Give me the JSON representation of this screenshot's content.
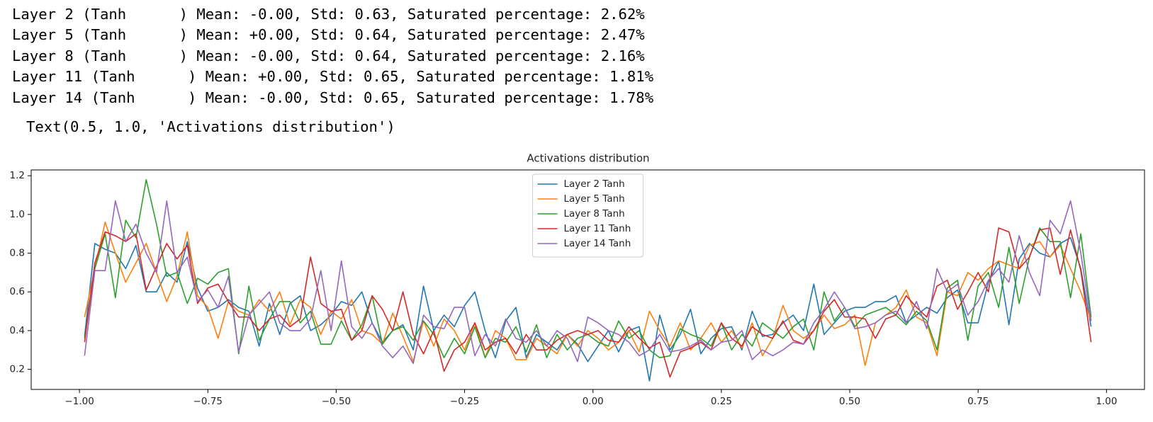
{
  "output": {
    "lines": [
      "Layer 2 (Tanh      ) Mean: -0.00, Std: 0.63, Saturated percentage: 2.62%",
      "Layer 5 (Tanh      ) Mean: +0.00, Std: 0.64, Saturated percentage: 2.47%",
      "Layer 8 (Tanh      ) Mean: -0.00, Std: 0.64, Saturated percentage: 2.16%",
      "Layer 11 (Tanh      ) Mean: +0.00, Std: 0.65, Saturated percentage: 1.81%",
      "Layer 14 (Tanh      ) Mean: -0.00, Std: 0.65, Saturated percentage: 1.78%"
    ],
    "repr": "Text(0.5, 1.0, 'Activations distribution')"
  },
  "chart_data": {
    "type": "line",
    "title": "Activations distribution",
    "legend": "upper center",
    "grid": false,
    "x": [
      -0.99,
      -0.97,
      -0.95,
      -0.93,
      -0.91,
      -0.89,
      -0.87,
      -0.85,
      -0.83,
      -0.81,
      -0.79,
      -0.77,
      -0.75,
      -0.73,
      -0.71,
      -0.69,
      -0.67,
      -0.65,
      -0.63,
      -0.61,
      -0.59,
      -0.57,
      -0.55,
      -0.53,
      -0.51,
      -0.49,
      -0.47,
      -0.45,
      -0.43,
      -0.41,
      -0.39,
      -0.37,
      -0.35,
      -0.33,
      -0.31,
      -0.29,
      -0.27,
      -0.25,
      -0.23,
      -0.21,
      -0.19,
      -0.17,
      -0.15,
      -0.13,
      -0.11,
      -0.09,
      -0.07,
      -0.05,
      -0.03,
      -0.01,
      0.01,
      0.03,
      0.05,
      0.07,
      0.09,
      0.11,
      0.13,
      0.15,
      0.17,
      0.19,
      0.21,
      0.23,
      0.25,
      0.27,
      0.29,
      0.31,
      0.33,
      0.35,
      0.37,
      0.39,
      0.41,
      0.43,
      0.45,
      0.47,
      0.49,
      0.51,
      0.53,
      0.55,
      0.57,
      0.59,
      0.61,
      0.63,
      0.65,
      0.67,
      0.69,
      0.71,
      0.73,
      0.75,
      0.77,
      0.79,
      0.81,
      0.83,
      0.85,
      0.87,
      0.89,
      0.91,
      0.93,
      0.95,
      0.97
    ],
    "series": [
      {
        "name": "Layer 2 Tanh",
        "color": "#1f77b4",
        "values": [
          0.37,
          0.85,
          0.82,
          0.8,
          0.72,
          0.84,
          0.6,
          0.6,
          0.7,
          0.65,
          0.86,
          0.62,
          0.5,
          0.52,
          0.56,
          0.52,
          0.5,
          0.32,
          0.54,
          0.38,
          0.54,
          0.58,
          0.4,
          0.43,
          0.48,
          0.55,
          0.53,
          0.6,
          0.44,
          0.34,
          0.4,
          0.43,
          0.3,
          0.63,
          0.4,
          0.48,
          0.42,
          0.53,
          0.6,
          0.4,
          0.26,
          0.45,
          0.52,
          0.26,
          0.38,
          0.34,
          0.3,
          0.38,
          0.33,
          0.24,
          0.32,
          0.4,
          0.29,
          0.4,
          0.42,
          0.14,
          0.48,
          0.3,
          0.38,
          0.51,
          0.28,
          0.36,
          0.41,
          0.42,
          0.3,
          0.5,
          0.37,
          0.38,
          0.44,
          0.48,
          0.4,
          0.64,
          0.38,
          0.44,
          0.5,
          0.52,
          0.52,
          0.55,
          0.55,
          0.58,
          0.44,
          0.48,
          0.52,
          0.49,
          0.57,
          0.61,
          0.44,
          0.44,
          0.65,
          0.76,
          0.43,
          0.77,
          0.85,
          0.8,
          0.78,
          0.85,
          0.88,
          0.72,
          0.42
        ]
      },
      {
        "name": "Layer 5 Tanh",
        "color": "#ff7f0e",
        "values": [
          0.47,
          0.72,
          0.96,
          0.8,
          0.65,
          0.75,
          0.85,
          0.7,
          0.55,
          0.68,
          0.91,
          0.58,
          0.52,
          0.36,
          0.55,
          0.5,
          0.48,
          0.56,
          0.5,
          0.6,
          0.43,
          0.56,
          0.52,
          0.38,
          0.5,
          0.46,
          0.56,
          0.4,
          0.38,
          0.33,
          0.49,
          0.37,
          0.24,
          0.45,
          0.32,
          0.46,
          0.4,
          0.3,
          0.44,
          0.26,
          0.4,
          0.36,
          0.25,
          0.25,
          0.36,
          0.32,
          0.28,
          0.38,
          0.32,
          0.4,
          0.36,
          0.3,
          0.34,
          0.4,
          0.29,
          0.5,
          0.4,
          0.32,
          0.44,
          0.3,
          0.36,
          0.44,
          0.34,
          0.4,
          0.31,
          0.44,
          0.27,
          0.36,
          0.53,
          0.4,
          0.36,
          0.4,
          0.48,
          0.41,
          0.43,
          0.48,
          0.22,
          0.44,
          0.48,
          0.52,
          0.61,
          0.47,
          0.44,
          0.27,
          0.6,
          0.58,
          0.7,
          0.66,
          0.72,
          0.76,
          0.74,
          0.72,
          0.84,
          0.86,
          0.78,
          0.84,
          0.72,
          0.6,
          0.45
        ]
      },
      {
        "name": "Layer 8 Tanh",
        "color": "#2ca02c",
        "values": [
          0.36,
          0.72,
          0.9,
          0.57,
          0.97,
          0.88,
          1.18,
          0.95,
          0.68,
          0.7,
          0.54,
          0.67,
          0.64,
          0.7,
          0.72,
          0.28,
          0.63,
          0.35,
          0.46,
          0.55,
          0.55,
          0.44,
          0.5,
          0.33,
          0.33,
          0.45,
          0.35,
          0.43,
          0.58,
          0.33,
          0.4,
          0.42,
          0.35,
          0.45,
          0.38,
          0.26,
          0.36,
          0.28,
          0.42,
          0.26,
          0.36,
          0.34,
          0.42,
          0.29,
          0.43,
          0.26,
          0.38,
          0.3,
          0.36,
          0.38,
          0.34,
          0.32,
          0.45,
          0.36,
          0.4,
          0.3,
          0.26,
          0.27,
          0.41,
          0.38,
          0.36,
          0.32,
          0.44,
          0.3,
          0.38,
          0.32,
          0.44,
          0.4,
          0.36,
          0.42,
          0.46,
          0.3,
          0.6,
          0.45,
          0.52,
          0.42,
          0.48,
          0.5,
          0.52,
          0.48,
          0.43,
          0.5,
          0.45,
          0.3,
          0.62,
          0.66,
          0.35,
          0.63,
          0.7,
          0.52,
          0.83,
          0.54,
          0.78,
          0.93,
          0.86,
          0.86,
          0.57,
          0.9,
          0.47
        ]
      },
      {
        "name": "Layer 11 Tanh",
        "color": "#d62728",
        "values": [
          0.34,
          0.75,
          0.91,
          0.89,
          0.86,
          0.9,
          0.61,
          0.73,
          0.85,
          0.77,
          0.84,
          0.54,
          0.62,
          0.64,
          0.55,
          0.47,
          0.47,
          0.4,
          0.46,
          0.48,
          0.42,
          0.46,
          0.78,
          0.54,
          0.5,
          0.51,
          0.35,
          0.4,
          0.58,
          0.51,
          0.4,
          0.6,
          0.38,
          0.28,
          0.4,
          0.19,
          0.3,
          0.34,
          0.44,
          0.3,
          0.34,
          0.36,
          0.28,
          0.38,
          0.3,
          0.3,
          0.35,
          0.38,
          0.4,
          0.38,
          0.4,
          0.35,
          0.34,
          0.42,
          0.36,
          0.31,
          0.34,
          0.16,
          0.29,
          0.31,
          0.34,
          0.3,
          0.44,
          0.36,
          0.32,
          0.42,
          0.38,
          0.36,
          0.45,
          0.35,
          0.33,
          0.4,
          0.5,
          0.56,
          0.47,
          0.47,
          0.46,
          0.36,
          0.46,
          0.48,
          0.58,
          0.52,
          0.47,
          0.63,
          0.66,
          0.51,
          0.6,
          0.7,
          0.6,
          0.93,
          0.91,
          0.72,
          0.78,
          0.92,
          0.93,
          0.69,
          0.92,
          0.71,
          0.34
        ]
      },
      {
        "name": "Layer 14 Tanh",
        "color": "#9467bd",
        "values": [
          0.27,
          0.71,
          0.71,
          1.07,
          0.86,
          0.95,
          0.8,
          0.7,
          1.07,
          0.7,
          0.78,
          0.55,
          0.61,
          0.52,
          0.68,
          0.29,
          0.48,
          0.54,
          0.6,
          0.44,
          0.4,
          0.4,
          0.46,
          0.71,
          0.4,
          0.76,
          0.42,
          0.36,
          0.44,
          0.32,
          0.26,
          0.32,
          0.23,
          0.48,
          0.42,
          0.41,
          0.52,
          0.52,
          0.27,
          0.38,
          0.32,
          0.46,
          0.36,
          0.34,
          0.4,
          0.32,
          0.4,
          0.36,
          0.24,
          0.47,
          0.44,
          0.4,
          0.38,
          0.34,
          0.27,
          0.3,
          0.38,
          0.29,
          0.3,
          0.32,
          0.35,
          0.3,
          0.34,
          0.35,
          0.4,
          0.25,
          0.3,
          0.27,
          0.3,
          0.34,
          0.33,
          0.44,
          0.51,
          0.6,
          0.52,
          0.41,
          0.42,
          0.44,
          0.48,
          0.5,
          0.44,
          0.55,
          0.41,
          0.72,
          0.6,
          0.64,
          0.48,
          0.55,
          0.66,
          0.72,
          0.65,
          0.89,
          0.7,
          0.58,
          0.97,
          0.9,
          1.07,
          0.8,
          0.45
        ]
      }
    ],
    "xlim": [
      -1.094,
      1.074
    ],
    "xticks": [
      {
        "value": -1,
        "label": "−1.00"
      },
      {
        "value": -0.75,
        "label": "−0.75"
      },
      {
        "value": -0.5,
        "label": "−0.50"
      },
      {
        "value": -0.25,
        "label": "−0.25"
      },
      {
        "value": 0,
        "label": "0.00"
      },
      0.25,
      {
        "value": 0.5,
        "label": "0.50"
      },
      0.75,
      {
        "value": 1,
        "label": "1.00"
      }
    ],
    "ylim": [
      0.096,
      1.23
    ],
    "yticks": [
      0.2,
      0.4,
      0.6,
      0.8,
      {
        "value": 1,
        "label": "1.0"
      },
      1.2
    ]
  }
}
